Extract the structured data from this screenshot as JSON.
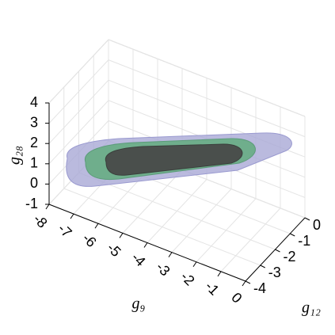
{
  "chart_data": {
    "type": "surface3d",
    "xlabel": "g₉",
    "ylabel": "g₁₂",
    "zlabel": "g₂₈",
    "xlim": [
      -8,
      0
    ],
    "xticks": [
      -8,
      -7,
      -6,
      -5,
      -4,
      -3,
      -2,
      -1,
      0
    ],
    "ylim": [
      -4,
      0
    ],
    "yticks": [
      -4,
      -3,
      -2,
      -1,
      0
    ],
    "zlim": [
      -1,
      4
    ],
    "zticks": [
      -1,
      0,
      1,
      2,
      3,
      4
    ],
    "grid": true
  }
}
